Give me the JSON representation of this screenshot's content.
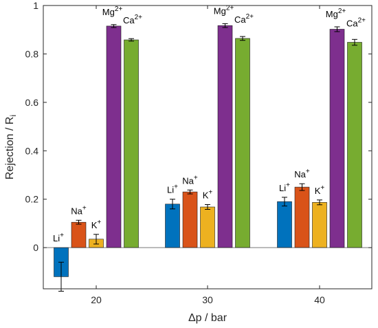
{
  "chart_data": {
    "type": "bar",
    "title": "",
    "xlabel": "Δp / bar",
    "ylabel": "Rejection / R",
    "ylabel_sub": "i",
    "categories": [
      "20",
      "30",
      "40"
    ],
    "ylim": [
      -0.17,
      1.0
    ],
    "yticks": [
      0,
      0.2,
      0.4,
      0.6,
      0.8,
      1
    ],
    "ytick_labels": [
      "0",
      "0.2",
      "0.4",
      "0.6",
      "0.8",
      "1"
    ],
    "grid": false,
    "series": [
      {
        "name": "Li",
        "charge": "+",
        "color": "#0072BD",
        "values": [
          -0.12,
          0.18,
          0.19
        ],
        "errors": [
          0.06,
          0.02,
          0.018
        ]
      },
      {
        "name": "Na",
        "charge": "+",
        "color": "#D95319",
        "values": [
          0.105,
          0.23,
          0.25
        ],
        "errors": [
          0.008,
          0.008,
          0.014
        ]
      },
      {
        "name": "K",
        "charge": "+",
        "color": "#EDB120",
        "values": [
          0.035,
          0.168,
          0.187
        ],
        "errors": [
          0.02,
          0.01,
          0.01
        ]
      },
      {
        "name": "Mg",
        "charge": "2+",
        "color": "#7E2F8E",
        "values": [
          0.915,
          0.917,
          0.902
        ],
        "errors": [
          0.006,
          0.008,
          0.01
        ]
      },
      {
        "name": "Ca",
        "charge": "2+",
        "color": "#77AC30",
        "values": [
          0.858,
          0.864,
          0.848
        ],
        "errors": [
          0.005,
          0.008,
          0.012
        ]
      }
    ]
  }
}
